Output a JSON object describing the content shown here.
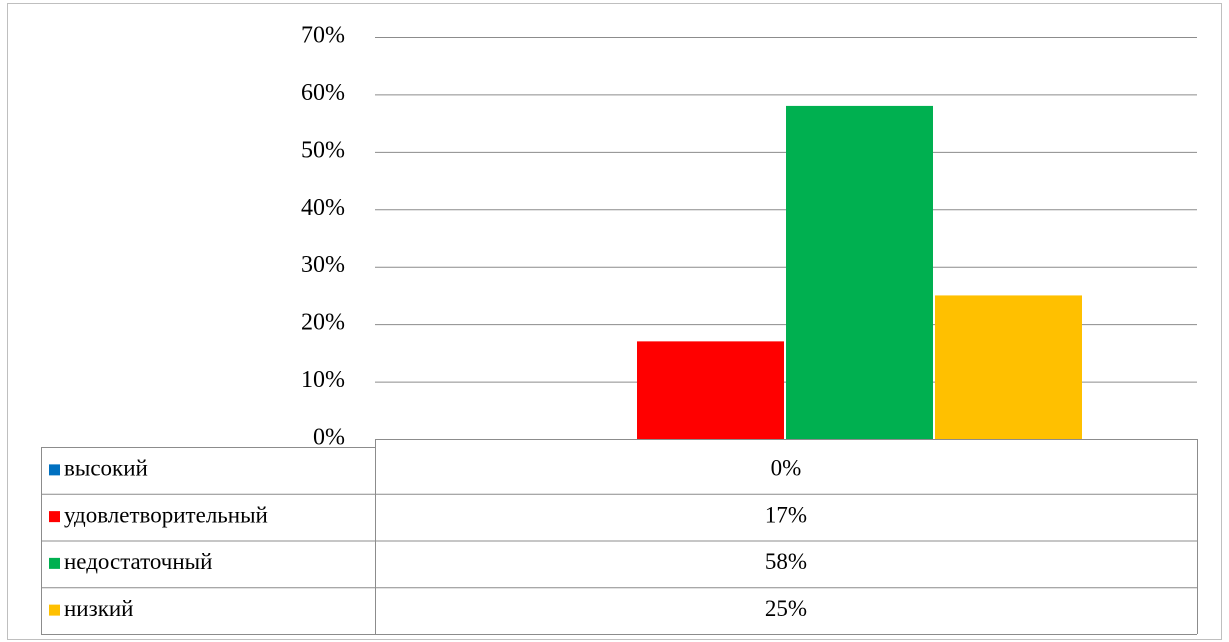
{
  "chart_data": {
    "type": "bar",
    "categories": [
      null
    ],
    "series": [
      {
        "name": "высокий",
        "color": "#0070c0",
        "values": [
          0
        ],
        "value_labels": [
          "0%"
        ]
      },
      {
        "name": "удовлетворительный",
        "color": "#ff0000",
        "values": [
          17
        ],
        "value_labels": [
          "17%"
        ]
      },
      {
        "name": "недостаточный",
        "color": "#00b050",
        "values": [
          58
        ],
        "value_labels": [
          "58%"
        ]
      },
      {
        "name": "низкий",
        "color": "#ffc000",
        "values": [
          25
        ],
        "value_labels": [
          "25%"
        ]
      }
    ],
    "ylim": [
      0,
      70
    ],
    "yticks": [
      {
        "value": 0,
        "label": "0%"
      },
      {
        "value": 10,
        "label": "10%"
      },
      {
        "value": 20,
        "label": "20%"
      },
      {
        "value": 30,
        "label": "30%"
      },
      {
        "value": 40,
        "label": "40%"
      },
      {
        "value": 50,
        "label": "50%"
      },
      {
        "value": 60,
        "label": "60%"
      },
      {
        "value": 70,
        "label": "70%"
      }
    ],
    "grid": true,
    "data_table": true
  }
}
